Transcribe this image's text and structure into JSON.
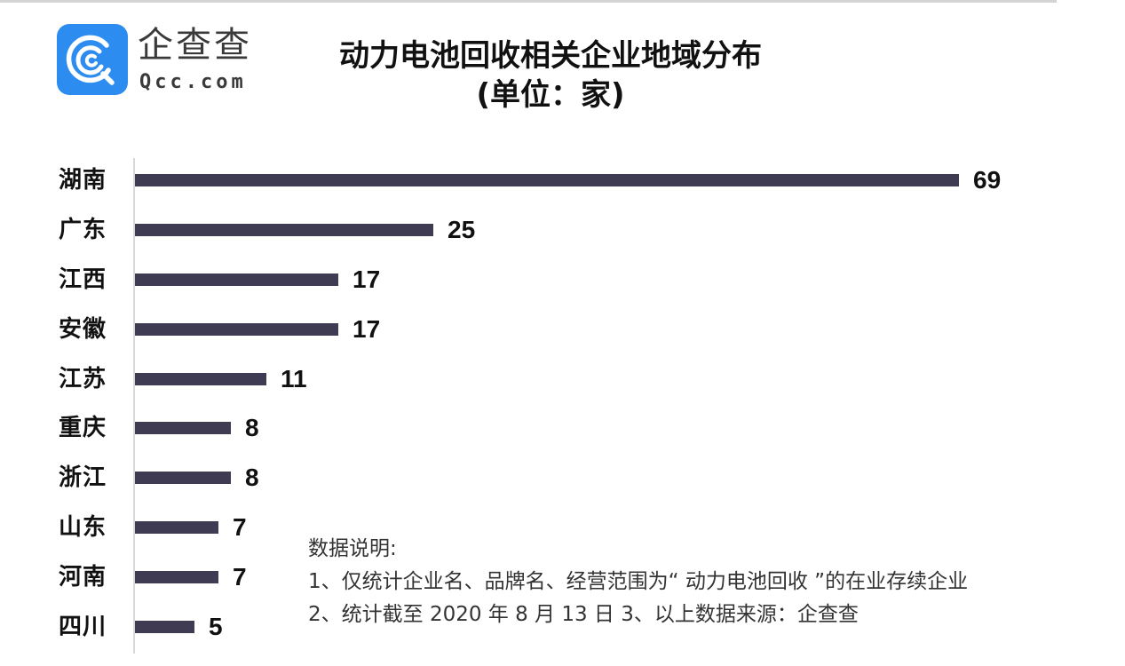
{
  "logo": {
    "name_cn": "企查查",
    "name_en": "Qcc.com",
    "icon": "qcc-logo-icon",
    "color": "#2d8cf0"
  },
  "header": {
    "title": "动力电池回收相关企业地域分布",
    "subtitle": "(单位：家)"
  },
  "chart_data": {
    "type": "bar",
    "orientation": "horizontal",
    "title": "动力电池回收相关企业地域分布",
    "subtitle": "(单位：家)",
    "xlabel": "",
    "ylabel": "",
    "unit": "家",
    "categories": [
      "湖南",
      "广东",
      "江西",
      "安徽",
      "江苏",
      "重庆",
      "浙江",
      "山东",
      "河南",
      "四川"
    ],
    "values": [
      69,
      25,
      17,
      17,
      11,
      8,
      8,
      7,
      7,
      5
    ],
    "xlim": [
      0,
      69
    ],
    "grid": false,
    "legend": null,
    "data_labels": true,
    "bar_color": "#3f3b52"
  },
  "rows": [
    {
      "label": "湖南",
      "value": "69"
    },
    {
      "label": "广东",
      "value": "25"
    },
    {
      "label": "江西",
      "value": "17"
    },
    {
      "label": "安徽",
      "value": "17"
    },
    {
      "label": "江苏",
      "value": "11"
    },
    {
      "label": "重庆",
      "value": "8"
    },
    {
      "label": "浙江",
      "value": "8"
    },
    {
      "label": "山东",
      "value": "7"
    },
    {
      "label": "河南",
      "value": "7"
    },
    {
      "label": "四川",
      "value": "5"
    }
  ],
  "notes": {
    "heading": "数据说明:",
    "line1": "1、仅统计企业名、品牌名、经营范围为“ 动力电池回收 ”的在业存续企业",
    "line2": "2、统计截至 2020 年 8 月 13 日  3、以上数据来源：企查查"
  }
}
